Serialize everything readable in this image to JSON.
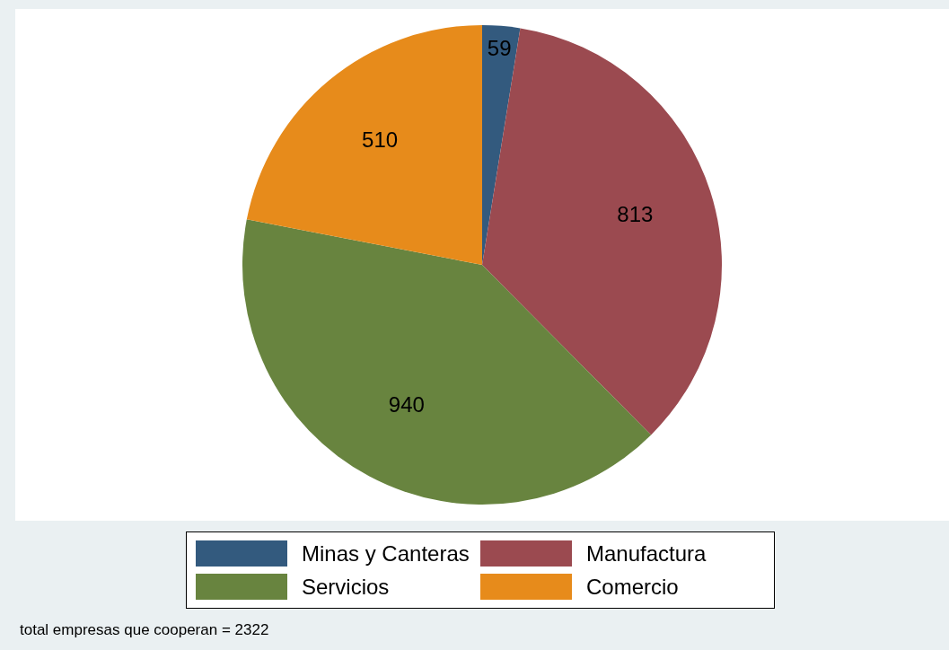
{
  "chart_data": {
    "type": "pie",
    "categories": [
      "Minas y Canteras",
      "Manufactura",
      "Servicios",
      "Comercio"
    ],
    "values": [
      59,
      813,
      940,
      510
    ],
    "colors": [
      "#335a7e",
      "#9b4a50",
      "#68843f",
      "#e78b1b"
    ],
    "data_labels": true,
    "legend": "bottom",
    "annotations": [
      "total empresas que cooperan = 2322"
    ]
  }
}
